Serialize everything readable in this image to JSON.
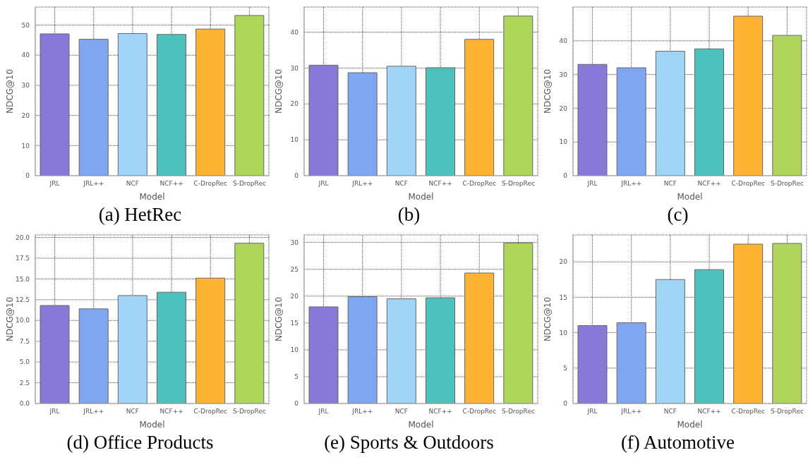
{
  "chart_data": [
    {
      "type": "bar",
      "title": "(a) HetRec",
      "xlabel": "Model",
      "ylabel": "NDCG@10",
      "categories": [
        "JRL",
        "JRL++",
        "NCF",
        "NCF++",
        "C-DropRec",
        "S-DropRec"
      ],
      "values": [
        47.1,
        45.3,
        47.2,
        46.9,
        48.7,
        53.2
      ],
      "colors": [
        "#8878d8",
        "#7fa6ee",
        "#a0d5f8",
        "#4fc1bc",
        "#feb432",
        "#afd65b"
      ],
      "ylim": [
        0,
        56
      ],
      "yticks": [
        0,
        10,
        20,
        30,
        40,
        50
      ],
      "grid": true
    },
    {
      "type": "bar",
      "title": "(b)",
      "xlabel": "Model",
      "ylabel": "NDCG@10",
      "categories": [
        "JRL",
        "JRL++",
        "NCF",
        "NCF++",
        "C-DropRec",
        "S-DropRec"
      ],
      "values": [
        30.8,
        28.7,
        30.5,
        30.1,
        38.0,
        44.5
      ],
      "colors": [
        "#8878d8",
        "#7fa6ee",
        "#a0d5f8",
        "#4fc1bc",
        "#feb432",
        "#afd65b"
      ],
      "ylim": [
        0,
        47
      ],
      "yticks": [
        0,
        10,
        20,
        30,
        40
      ],
      "grid": true
    },
    {
      "type": "bar",
      "title": "(c)",
      "xlabel": "Model",
      "ylabel": "NDCG@10",
      "categories": [
        "JRL",
        "JRL++",
        "NCF",
        "NCF++",
        "C-DropRec",
        "S-DropRec"
      ],
      "values": [
        33.0,
        32.0,
        36.9,
        37.6,
        47.3,
        41.6
      ],
      "colors": [
        "#8878d8",
        "#7fa6ee",
        "#a0d5f8",
        "#4fc1bc",
        "#feb432",
        "#afd65b"
      ],
      "ylim": [
        0,
        50
      ],
      "yticks": [
        0,
        10,
        20,
        30,
        40
      ],
      "grid": true
    },
    {
      "type": "bar",
      "title": "(d) Office Products",
      "xlabel": "Model",
      "ylabel": "NDCG@10",
      "categories": [
        "JRL",
        "JRL++",
        "NCF",
        "NCF++",
        "C-DropRec",
        "S-DropRec"
      ],
      "values": [
        11.8,
        11.4,
        13.0,
        13.4,
        15.1,
        19.3
      ],
      "colors": [
        "#8878d8",
        "#7fa6ee",
        "#a0d5f8",
        "#4fc1bc",
        "#feb432",
        "#afd65b"
      ],
      "ylim": [
        0,
        20.3
      ],
      "yticks": [
        {
          "value": 0,
          "label": "0.0"
        },
        2.5,
        {
          "value": 5,
          "label": "5.0"
        },
        7.5,
        {
          "value": 10,
          "label": "10.0"
        },
        12.5,
        {
          "value": 15,
          "label": "15.0"
        },
        17.5,
        {
          "value": 20,
          "label": "20.0"
        }
      ],
      "grid": true
    },
    {
      "type": "bar",
      "title": "(e) Sports & Outdoors",
      "xlabel": "Model",
      "ylabel": "NDCG@10",
      "categories": [
        "JRL",
        "JRL++",
        "NCF",
        "NCF++",
        "C-DropRec",
        "S-DropRec"
      ],
      "values": [
        18.0,
        19.9,
        19.5,
        19.7,
        24.3,
        29.9
      ],
      "colors": [
        "#8878d8",
        "#7fa6ee",
        "#a0d5f8",
        "#4fc1bc",
        "#feb432",
        "#afd65b"
      ],
      "ylim": [
        0,
        31.4
      ],
      "yticks": [
        0,
        5,
        10,
        15,
        20,
        25,
        30
      ],
      "grid": true
    },
    {
      "type": "bar",
      "title": "(f) Automotive",
      "xlabel": "Model",
      "ylabel": "NDCG@10",
      "categories": [
        "JRL",
        "JRL++",
        "NCF",
        "NCF++",
        "C-DropRec",
        "S-DropRec"
      ],
      "values": [
        11.0,
        11.4,
        17.5,
        18.9,
        22.5,
        22.6
      ],
      "colors": [
        "#8878d8",
        "#7fa6ee",
        "#a0d5f8",
        "#4fc1bc",
        "#feb432",
        "#afd65b"
      ],
      "ylim": [
        0,
        23.8
      ],
      "yticks": [
        0,
        5,
        10,
        15,
        20
      ],
      "grid": true
    }
  ]
}
